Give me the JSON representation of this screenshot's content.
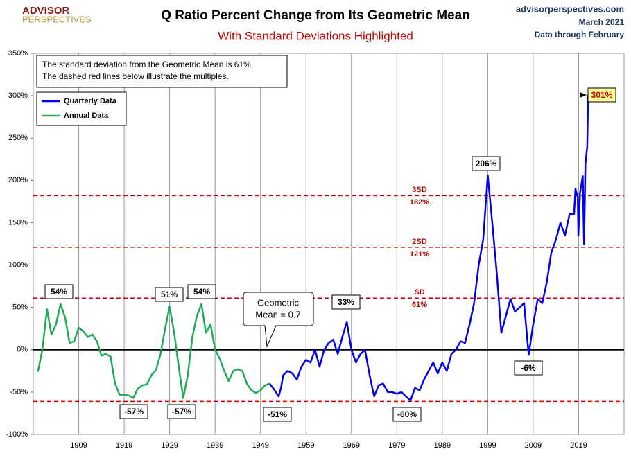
{
  "chart_data": {
    "type": "line",
    "title": "Q Ratio Percent Change from Its Geometric Mean",
    "subtitle": "With Standard Deviations Highlighted",
    "logo": [
      "ADVISOR",
      "PERSPECTIVES"
    ],
    "source": [
      "advisorperspectives.com",
      "March 2021",
      "Data through February"
    ],
    "note": [
      "The standard deviation from the Geometric Mean is 61%.",
      "The dashed red lines below illustrate the multiples."
    ],
    "mean_label": [
      "Geometric",
      "Mean = 0.7"
    ],
    "mean_value": 0,
    "mean_color": "#000000",
    "legend": "upper left",
    "grid": true,
    "xlim": [
      1899,
      2029
    ],
    "xticks": [
      1909,
      1919,
      1929,
      1939,
      1949,
      1959,
      1969,
      1979,
      1989,
      1999,
      2009,
      2019
    ],
    "ylim": [
      -100,
      350
    ],
    "yticks": [
      {
        "value": -100,
        "label": "-100%"
      },
      {
        "value": -50,
        "label": "-50%"
      },
      {
        "value": 0,
        "label": "0%"
      },
      {
        "value": 50,
        "label": "50%"
      },
      {
        "value": 100,
        "label": "100%"
      },
      {
        "value": 150,
        "label": "150%"
      },
      {
        "value": 200,
        "label": "200%"
      },
      {
        "value": 250,
        "label": "250%"
      },
      {
        "value": 300,
        "label": "300%"
      },
      {
        "value": 350,
        "label": "350%"
      }
    ],
    "reference_lines": [
      {
        "value": 182,
        "label": "3SD",
        "value_label": "182%"
      },
      {
        "value": 121,
        "label": "2SD",
        "value_label": "121%"
      },
      {
        "value": 61,
        "label": "SD",
        "value_label": "61%"
      },
      {
        "value": -61
      }
    ],
    "reference_color": "#cc0000",
    "annotations": [
      "54%",
      "51%",
      "54%",
      "-57%",
      "-57%",
      "-51%",
      "33%",
      "-60%",
      "206%",
      "-6%",
      "301%"
    ],
    "series": [
      {
        "name": "Quarterly Data",
        "color": "#0000ee",
        "x": [
          1951,
          1952,
          1953,
          1953.5,
          1954,
          1955,
          1956,
          1957,
          1958,
          1959,
          1960,
          1961,
          1962,
          1963,
          1964,
          1965,
          1966,
          1967,
          1968,
          1969,
          1970,
          1971,
          1972,
          1973,
          1974,
          1975,
          1976,
          1977,
          1978,
          1979,
          1980,
          1981,
          1982,
          1983,
          1984,
          1985,
          1986,
          1987,
          1988,
          1989,
          1990,
          1991,
          1992,
          1993,
          1994,
          1995,
          1996,
          1997,
          1998,
          1999,
          2000,
          2001,
          2002,
          2003,
          2004,
          2005,
          2006,
          2007,
          2008,
          2009,
          2010,
          2011,
          2012,
          2013,
          2014,
          2015,
          2016,
          2017,
          2018,
          2018.3,
          2018.8,
          2018.95,
          2019.3,
          2019.9,
          2020.2,
          2020.5,
          2020.9,
          2021.1
        ],
        "values": [
          -40,
          -47,
          -55,
          -45,
          -30,
          -25,
          -28,
          -35,
          -20,
          -12,
          -15,
          0,
          -20,
          0,
          8,
          12,
          -5,
          15,
          33,
          0,
          -15,
          -5,
          0,
          -30,
          -55,
          -42,
          -40,
          -50,
          -50,
          -52,
          -50,
          -55,
          -60,
          -45,
          -48,
          -35,
          -25,
          -15,
          -28,
          -15,
          -25,
          -5,
          0,
          10,
          8,
          30,
          55,
          100,
          130,
          206,
          150,
          90,
          20,
          40,
          60,
          45,
          50,
          55,
          -6,
          30,
          60,
          55,
          80,
          115,
          130,
          150,
          135,
          160,
          160,
          190,
          180,
          135,
          185,
          205,
          125,
          220,
          240,
          301
        ]
      },
      {
        "name": "Annual Data",
        "color": "#1faa55",
        "x": [
          1900,
          1901,
          1902,
          1903,
          1904,
          1905,
          1906,
          1907,
          1908,
          1909,
          1910,
          1911,
          1912,
          1913,
          1914,
          1915,
          1916,
          1917,
          1918,
          1919,
          1920,
          1921,
          1922,
          1923,
          1924,
          1925,
          1926,
          1927,
          1928,
          1929,
          1930,
          1931,
          1932,
          1933,
          1934,
          1935,
          1936,
          1937,
          1938,
          1939,
          1940,
          1941,
          1942,
          1943,
          1944,
          1945,
          1946,
          1947,
          1948,
          1949,
          1950,
          1951
        ],
        "values": [
          -26,
          0,
          48,
          18,
          30,
          54,
          38,
          8,
          10,
          26,
          22,
          15,
          18,
          10,
          -7,
          -5,
          -8,
          -40,
          -53,
          -53,
          -54,
          -57,
          -46,
          -42,
          -41,
          -30,
          -24,
          -5,
          25,
          51,
          20,
          -20,
          -57,
          -30,
          15,
          40,
          54,
          20,
          30,
          0,
          -10,
          -25,
          -37,
          -25,
          -23,
          -25,
          -40,
          -48,
          -51,
          -48,
          -42,
          -40
        ]
      }
    ]
  }
}
